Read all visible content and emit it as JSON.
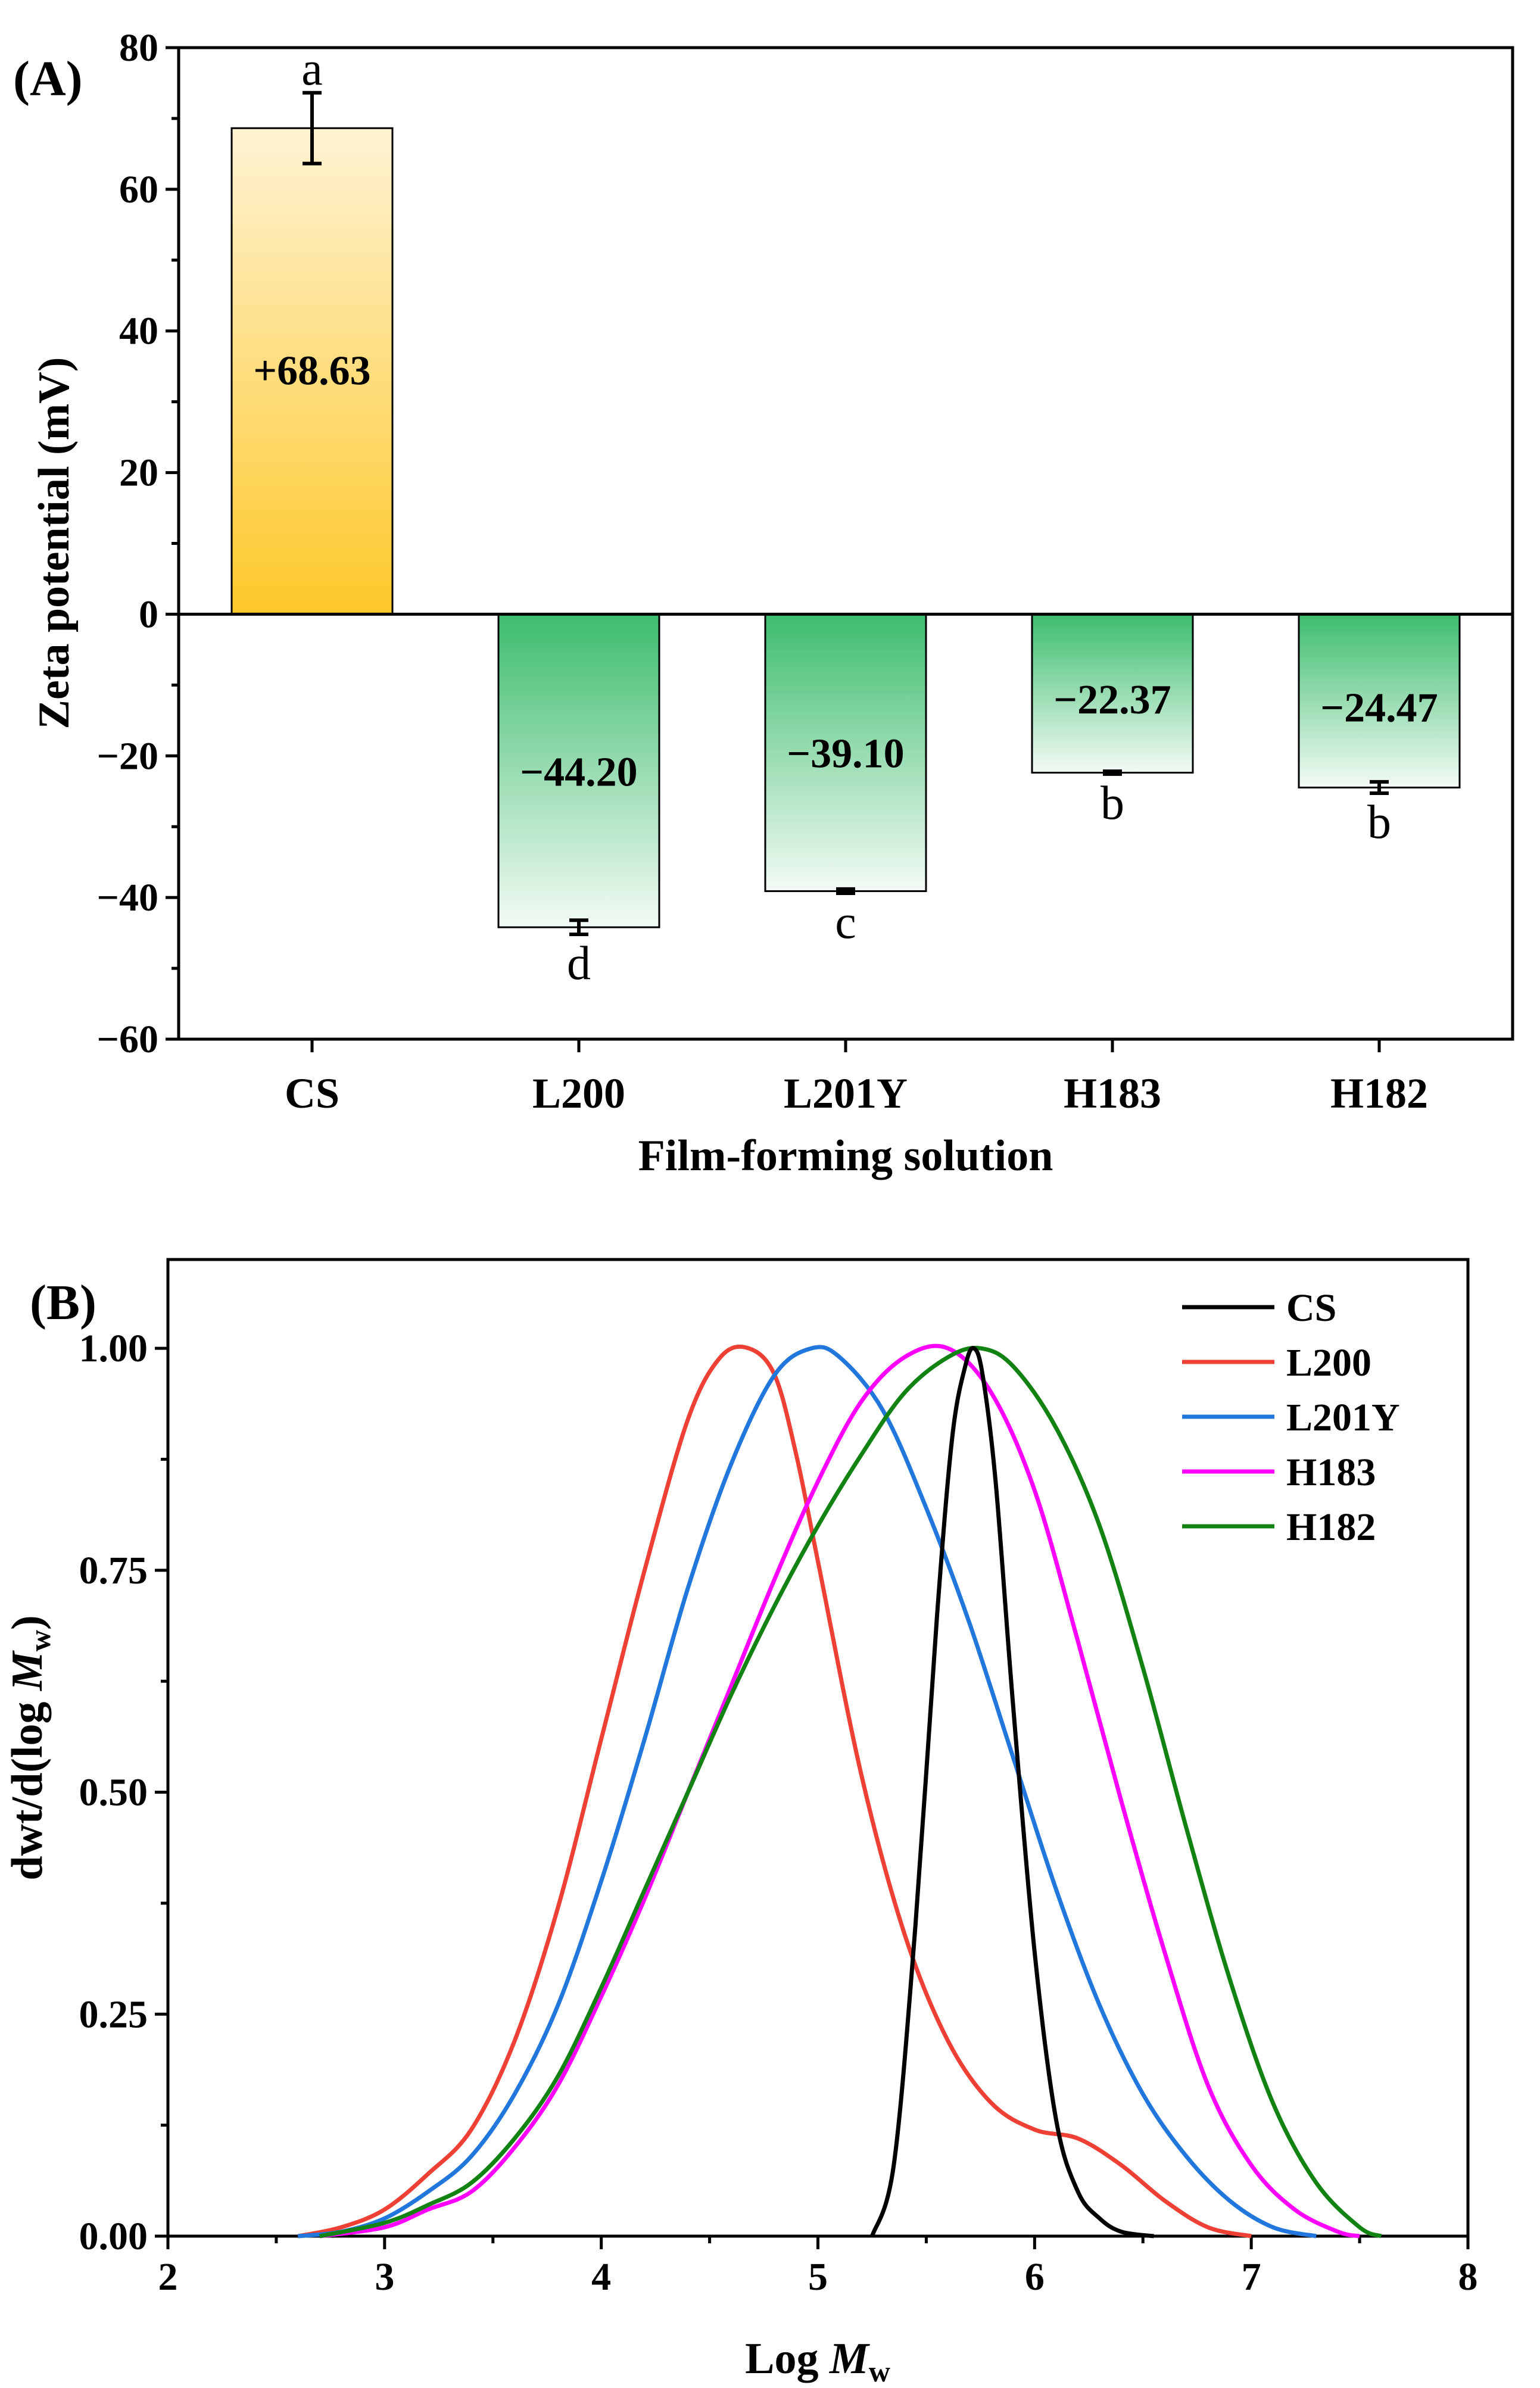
{
  "chart_data": [
    {
      "type": "bar",
      "panel_label": "(A)",
      "xlabel": "Film-forming solution",
      "ylabel": "Zeta potential (mV)",
      "ylim": [
        -60,
        80
      ],
      "yticks": [
        -60,
        -40,
        -20,
        0,
        20,
        40,
        60,
        80
      ],
      "ytick_labels": [
        "−60",
        "−40",
        "−20",
        "0",
        "20",
        "40",
        "60",
        "80"
      ],
      "categories": [
        "CS",
        "L200",
        "L201Y",
        "H183",
        "H182"
      ],
      "values": [
        68.63,
        -44.2,
        -39.1,
        -22.37,
        -24.47
      ],
      "errors": [
        5.0,
        1.0,
        0.3,
        0.2,
        0.8
      ],
      "value_labels": [
        "+68.63",
        "−44.20",
        "−39.10",
        "−22.37",
        "−24.47"
      ],
      "significance": [
        "a",
        "d",
        "c",
        "b",
        "b"
      ],
      "colors": {
        "positive_top": "#fff3d4",
        "positive_bottom": "#fdc829",
        "negative_top": "#3dbd6e",
        "negative_bottom": "#f3fbf5"
      }
    },
    {
      "type": "line",
      "panel_label": "(B)",
      "xlabel": "Log ",
      "xlabel_italic": "M",
      "xlabel_sub": "w",
      "ylabel": "dwt/d(log ",
      "ylabel_italic": "M",
      "ylabel_sub": "w",
      "ylabel_end": ")",
      "xlim": [
        2,
        8
      ],
      "ylim": [
        0,
        1.1
      ],
      "xticks": [
        2,
        3,
        4,
        5,
        6,
        7,
        8
      ],
      "xtick_labels": [
        "2",
        "3",
        "4",
        "5",
        "6",
        "7",
        "8"
      ],
      "yticks": [
        0,
        0.25,
        0.5,
        0.75,
        1.0
      ],
      "ytick_labels": [
        "0.00",
        "0.25",
        "0.50",
        "0.75",
        "1.00"
      ],
      "legend_position": "top-right",
      "series": [
        {
          "name": "CS",
          "color": "#000000",
          "x": [
            5.25,
            5.35,
            5.45,
            5.55,
            5.62,
            5.68,
            5.72,
            5.76,
            5.82,
            5.9,
            6.0,
            6.1,
            6.2,
            6.3,
            6.4,
            6.55
          ],
          "y": [
            0.0,
            0.08,
            0.35,
            0.7,
            0.9,
            0.98,
            1.0,
            0.97,
            0.85,
            0.6,
            0.32,
            0.13,
            0.05,
            0.02,
            0.005,
            0.0
          ]
        },
        {
          "name": "L200",
          "color": "#ee4035",
          "x": [
            2.6,
            2.8,
            3.0,
            3.2,
            3.4,
            3.6,
            3.8,
            4.0,
            4.2,
            4.4,
            4.55,
            4.68,
            4.8,
            4.9,
            5.0,
            5.2,
            5.4,
            5.6,
            5.8,
            6.0,
            6.2,
            6.4,
            6.6,
            6.8,
            7.0
          ],
          "y": [
            0.0,
            0.01,
            0.03,
            0.07,
            0.12,
            0.22,
            0.37,
            0.56,
            0.75,
            0.92,
            0.99,
            1.0,
            0.97,
            0.88,
            0.76,
            0.52,
            0.34,
            0.22,
            0.15,
            0.12,
            0.11,
            0.08,
            0.04,
            0.01,
            0.0
          ]
        },
        {
          "name": "L201Y",
          "color": "#2277dd",
          "x": [
            2.6,
            2.8,
            3.0,
            3.2,
            3.4,
            3.6,
            3.8,
            4.0,
            4.2,
            4.4,
            4.6,
            4.8,
            4.97,
            5.1,
            5.3,
            5.5,
            5.7,
            5.9,
            6.1,
            6.3,
            6.5,
            6.7,
            6.9,
            7.1,
            7.3
          ],
          "y": [
            0.0,
            0.005,
            0.02,
            0.05,
            0.09,
            0.16,
            0.26,
            0.4,
            0.56,
            0.73,
            0.87,
            0.97,
            1.0,
            0.99,
            0.93,
            0.82,
            0.69,
            0.54,
            0.39,
            0.26,
            0.16,
            0.09,
            0.04,
            0.01,
            0.0
          ]
        },
        {
          "name": "H183",
          "color": "#ff00ff",
          "x": [
            2.7,
            3.0,
            3.2,
            3.4,
            3.6,
            3.8,
            4.0,
            4.2,
            4.4,
            4.6,
            4.8,
            5.0,
            5.2,
            5.4,
            5.6,
            5.8,
            6.0,
            6.2,
            6.4,
            6.6,
            6.8,
            7.0,
            7.2,
            7.4,
            7.5
          ],
          "y": [
            0.0,
            0.01,
            0.03,
            0.05,
            0.1,
            0.17,
            0.27,
            0.38,
            0.5,
            0.62,
            0.74,
            0.85,
            0.94,
            0.99,
            1.0,
            0.95,
            0.84,
            0.67,
            0.49,
            0.32,
            0.17,
            0.08,
            0.03,
            0.005,
            0.0
          ]
        },
        {
          "name": "H182",
          "color": "#128212",
          "x": [
            2.7,
            3.0,
            3.2,
            3.4,
            3.6,
            3.8,
            4.0,
            4.2,
            4.4,
            4.6,
            4.8,
            5.0,
            5.2,
            5.4,
            5.6,
            5.75,
            5.9,
            6.1,
            6.3,
            6.5,
            6.7,
            6.9,
            7.1,
            7.3,
            7.5,
            7.6
          ],
          "y": [
            0.0,
            0.015,
            0.035,
            0.06,
            0.11,
            0.18,
            0.28,
            0.39,
            0.5,
            0.61,
            0.71,
            0.8,
            0.88,
            0.95,
            0.99,
            1.0,
            0.98,
            0.91,
            0.8,
            0.64,
            0.46,
            0.29,
            0.15,
            0.06,
            0.01,
            0.0
          ]
        }
      ]
    }
  ]
}
